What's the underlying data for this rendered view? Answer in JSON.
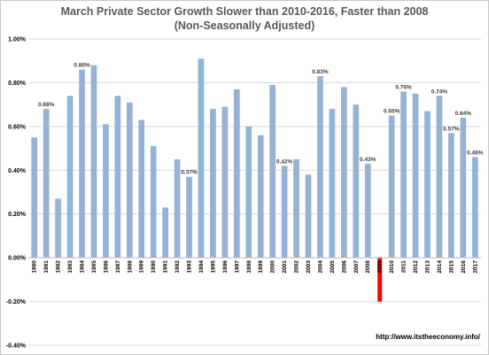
{
  "chart_data": {
    "type": "bar",
    "title": "March Private Sector Growth Slower than 2010-2016, Faster than 2008",
    "subtitle": "(Non-Seasonally Adjusted)",
    "xlabel": "",
    "ylabel": "",
    "ylim": [
      -0.4,
      1.0
    ],
    "yticks": [
      "1.00%",
      "0.80%",
      "0.60%",
      "0.40%",
      "0.20%",
      "0.00%",
      "-0.20%",
      "-0.40%"
    ],
    "ytick_values": [
      1.0,
      0.8,
      0.6,
      0.4,
      0.2,
      0.0,
      -0.2,
      -0.4
    ],
    "grid": true,
    "legend": "none",
    "categories": [
      "1980",
      "1981",
      "1982",
      "1983",
      "1984",
      "1985",
      "1986",
      "1987",
      "1988",
      "1989",
      "1990",
      "1991",
      "1992",
      "1993",
      "1994",
      "1995",
      "1996",
      "1997",
      "1998",
      "1999",
      "2000",
      "2001",
      "2002",
      "2003",
      "2004",
      "2005",
      "2006",
      "2007",
      "2008",
      "2009",
      "2010",
      "2011",
      "2012",
      "2013",
      "2014",
      "2015",
      "2016",
      "2017"
    ],
    "series": [
      {
        "values": [
          0.55,
          0.68,
          0.27,
          0.74,
          0.86,
          0.88,
          0.61,
          0.74,
          0.71,
          0.63,
          0.51,
          0.23,
          0.45,
          0.37,
          0.91,
          0.68,
          0.69,
          0.77,
          0.6,
          0.56,
          0.79,
          0.42,
          0.45,
          0.38,
          0.83,
          0.68,
          0.78,
          0.7,
          0.43,
          -0.2,
          0.65,
          0.76,
          0.75,
          0.67,
          0.74,
          0.57,
          0.64,
          0.46
        ],
        "color": "#95b3d7"
      }
    ],
    "highlight": {
      "category": "2009",
      "color": "#ff0000"
    },
    "data_labels": [
      {
        "category": "1981",
        "text": "0.68%"
      },
      {
        "category": "1984",
        "text": "0.86%"
      },
      {
        "category": "1993",
        "text": "0.37%"
      },
      {
        "category": "2001",
        "text": "0.42%"
      },
      {
        "category": "2004",
        "text": "0.83%"
      },
      {
        "category": "2008",
        "text": "0.43%"
      },
      {
        "category": "2010",
        "text": "0.65%"
      },
      {
        "category": "2011",
        "text": "0.76%"
      },
      {
        "category": "2014",
        "text": "0.74%"
      },
      {
        "category": "2015",
        "text": "0.57%"
      },
      {
        "category": "2016",
        "text": "0.64%"
      },
      {
        "category": "2017",
        "text": "0.46%"
      }
    ]
  },
  "source_note": "http://www.itstheeconomy.info/",
  "colors": {
    "bar": "#95b3d7",
    "highlight": "#ff0000",
    "grid": "#d9d9d9",
    "title": "#595959"
  }
}
